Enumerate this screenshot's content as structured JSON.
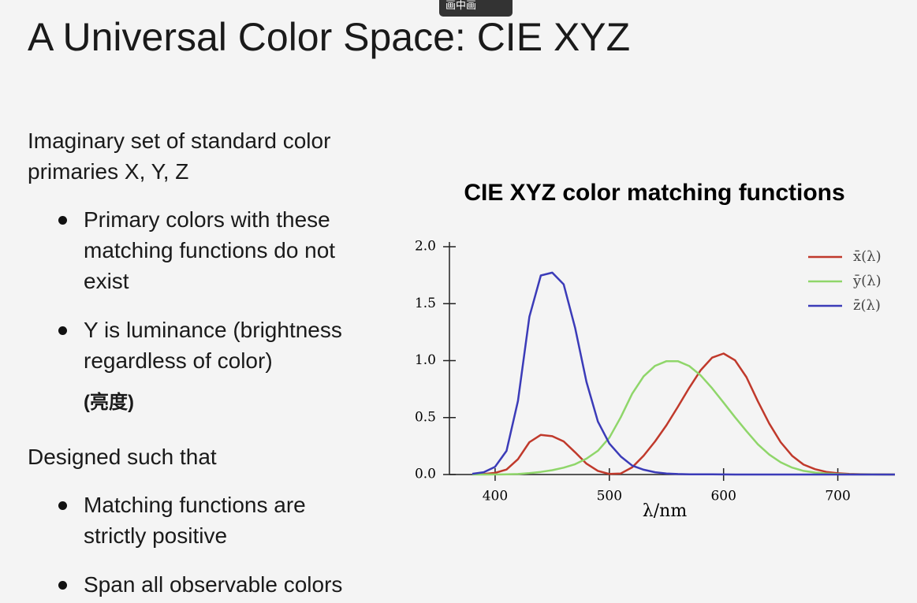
{
  "slide": {
    "title": "A Universal Color Space: CIE XYZ",
    "intro": "Imaginary set of standard color primaries X, Y, Z",
    "bullets1": [
      "Primary colors with these matching functions do not exist",
      "Y is luminance (brightness regardless of color)"
    ],
    "note": "(亮度)",
    "heading2": "Designed such that",
    "bullets2": [
      "Matching functions are strictly positive",
      "Span all observable colors"
    ]
  },
  "overlay": {
    "label": "画中画"
  },
  "chart_data": {
    "type": "line",
    "title": "CIE XYZ color matching functions",
    "xlabel": "λ/nm",
    "x": [
      380,
      390,
      400,
      410,
      420,
      430,
      440,
      450,
      460,
      470,
      480,
      490,
      500,
      510,
      520,
      530,
      540,
      550,
      560,
      570,
      580,
      590,
      600,
      610,
      620,
      630,
      640,
      650,
      660,
      670,
      680,
      690,
      700,
      710,
      720,
      730,
      740,
      750
    ],
    "series": [
      {
        "name": "x̄(λ)",
        "color": "#c0392b",
        "values": [
          0.0014,
          0.0042,
          0.0143,
          0.0435,
          0.1344,
          0.2839,
          0.3483,
          0.3362,
          0.2908,
          0.1954,
          0.0956,
          0.032,
          0.0049,
          0.0093,
          0.0633,
          0.1655,
          0.2904,
          0.4334,
          0.5945,
          0.7621,
          0.9163,
          1.0263,
          1.0622,
          1.0026,
          0.8544,
          0.6424,
          0.4479,
          0.2835,
          0.1649,
          0.0874,
          0.0468,
          0.0227,
          0.0114,
          0.0058,
          0.0029,
          0.0014,
          0.0007,
          0.0003
        ]
      },
      {
        "name": "ȳ(λ)",
        "color": "#8fd66a",
        "values": [
          0,
          0.0001,
          0.0004,
          0.0012,
          0.004,
          0.0116,
          0.023,
          0.038,
          0.06,
          0.091,
          0.139,
          0.208,
          0.323,
          0.503,
          0.71,
          0.862,
          0.954,
          0.995,
          0.995,
          0.952,
          0.87,
          0.757,
          0.631,
          0.503,
          0.381,
          0.265,
          0.175,
          0.107,
          0.061,
          0.032,
          0.017,
          0.0082,
          0.0041,
          0.0021,
          0.001,
          0.0005,
          0.0003,
          0.0001
        ]
      },
      {
        "name": "z̄(λ)",
        "color": "#3b3bb8",
        "values": [
          0.0065,
          0.0201,
          0.0679,
          0.2074,
          0.6456,
          1.3856,
          1.7471,
          1.7721,
          1.6692,
          1.2876,
          0.813,
          0.4652,
          0.272,
          0.1582,
          0.0782,
          0.0422,
          0.0203,
          0.0087,
          0.0039,
          0.0021,
          0.0017,
          0.0011,
          0.0008,
          0.0003,
          0.0002,
          0,
          0,
          0,
          0,
          0,
          0,
          0,
          0,
          0,
          0,
          0,
          0,
          0
        ]
      }
    ],
    "xlim": [
      360,
      750
    ],
    "ylim": [
      0,
      2.0
    ],
    "xticks": [
      400,
      500,
      600,
      700
    ],
    "yticks": [
      {
        "value": 0,
        "label": "0.0"
      },
      {
        "value": 0.5,
        "label": "0.5"
      },
      {
        "value": 1,
        "label": "1.0"
      },
      {
        "value": 1.5,
        "label": "1.5"
      },
      {
        "value": 2,
        "label": "2.0"
      }
    ],
    "legend": "upper right"
  }
}
